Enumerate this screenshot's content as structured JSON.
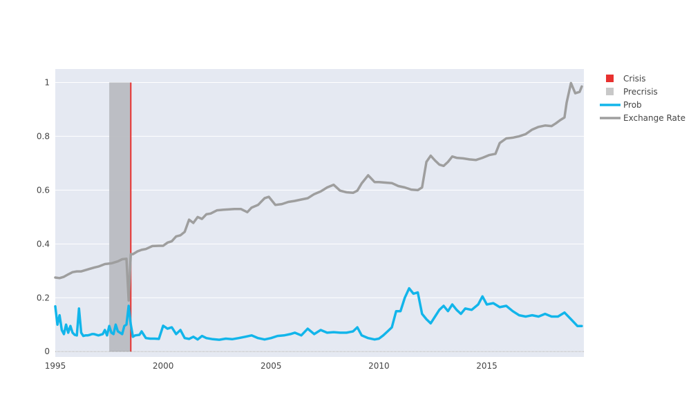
{
  "chart_data": {
    "type": "line",
    "title": "",
    "xlabel": "",
    "ylabel": "",
    "xlim": [
      1995.0,
      2019.5
    ],
    "ylim": [
      -0.02,
      1.05
    ],
    "x_ticks": [
      1995,
      2000,
      2005,
      2010,
      2015
    ],
    "y_ticks": [
      0,
      0.2,
      0.4,
      0.6,
      0.8,
      1
    ],
    "x_tick_labels": [
      "1995",
      "2000",
      "2005",
      "2010",
      "2015"
    ],
    "y_tick_labels": [
      "0",
      "0.2",
      "0.4",
      "0.6",
      "0.8",
      "1"
    ],
    "grid": true,
    "legend_position": "top-right",
    "colors": {
      "crisis": "#e8312f",
      "precrisis": "#b9bcc1",
      "prob": "#12b5ea",
      "exchange_rate": "#9e9e9e",
      "plot_bg": "#e5e9f2",
      "grid": "#ffffff",
      "tick_text": "#444444"
    },
    "legend": [
      {
        "name": "Crisis",
        "kind": "square",
        "color": "#e8312f"
      },
      {
        "name": "Precrisis",
        "kind": "square",
        "color": "#c8c8c8"
      },
      {
        "name": "Prob",
        "kind": "line",
        "color": "#12b5ea"
      },
      {
        "name": "Exchange Rate",
        "kind": "line",
        "color": "#9e9e9e"
      }
    ],
    "shapes": {
      "precrisis_band": {
        "x0": 1997.5,
        "x1": 1998.5,
        "y0": 0,
        "y1": 1
      },
      "crisis_line": {
        "x": 1998.5,
        "y0": 0,
        "y1": 1
      }
    },
    "series": [
      {
        "name": "Exchange Rate",
        "x": [
          1995.0,
          1995.2,
          1995.4,
          1995.6,
          1995.8,
          1996.0,
          1996.2,
          1996.5,
          1996.8,
          1997.0,
          1997.3,
          1997.6,
          1997.9,
          1998.1,
          1998.3,
          1998.4,
          1998.5,
          1998.6,
          1998.8,
          1999.0,
          1999.2,
          1999.5,
          1999.8,
          2000.0,
          2000.2,
          2000.4,
          2000.6,
          2000.8,
          2001.0,
          2001.2,
          2001.4,
          2001.6,
          2001.8,
          2002.0,
          2002.2,
          2002.5,
          2002.8,
          2003.0,
          2003.3,
          2003.6,
          2003.9,
          2004.1,
          2004.4,
          2004.7,
          2004.9,
          2005.2,
          2005.5,
          2005.8,
          2006.1,
          2006.4,
          2006.7,
          2007.0,
          2007.3,
          2007.6,
          2007.9,
          2008.2,
          2008.5,
          2008.8,
          2009.0,
          2009.2,
          2009.5,
          2009.8,
          2010.0,
          2010.3,
          2010.6,
          2010.9,
          2011.2,
          2011.5,
          2011.8,
          2012.0,
          2012.2,
          2012.4,
          2012.6,
          2012.8,
          2013.0,
          2013.2,
          2013.4,
          2013.6,
          2013.9,
          2014.2,
          2014.5,
          2014.8,
          2015.1,
          2015.4,
          2015.6,
          2015.9,
          2016.2,
          2016.5,
          2016.8,
          2017.1,
          2017.4,
          2017.7,
          2018.0,
          2018.2,
          2018.4,
          2018.6,
          2018.7,
          2018.9,
          2019.1,
          2019.3,
          2019.4
        ],
        "values": [
          0.275,
          0.273,
          0.278,
          0.287,
          0.295,
          0.298,
          0.298,
          0.305,
          0.312,
          0.316,
          0.325,
          0.328,
          0.335,
          0.343,
          0.345,
          0.19,
          0.362,
          0.362,
          0.372,
          0.378,
          0.381,
          0.392,
          0.393,
          0.393,
          0.405,
          0.41,
          0.428,
          0.432,
          0.445,
          0.49,
          0.478,
          0.5,
          0.493,
          0.51,
          0.513,
          0.525,
          0.527,
          0.528,
          0.53,
          0.53,
          0.518,
          0.535,
          0.545,
          0.57,
          0.575,
          0.545,
          0.548,
          0.556,
          0.56,
          0.565,
          0.57,
          0.585,
          0.595,
          0.61,
          0.62,
          0.598,
          0.592,
          0.59,
          0.598,
          0.625,
          0.655,
          0.63,
          0.63,
          0.628,
          0.626,
          0.615,
          0.61,
          0.602,
          0.6,
          0.61,
          0.705,
          0.728,
          0.71,
          0.695,
          0.69,
          0.705,
          0.725,
          0.72,
          0.718,
          0.714,
          0.712,
          0.72,
          0.73,
          0.735,
          0.775,
          0.792,
          0.795,
          0.8,
          0.808,
          0.825,
          0.835,
          0.84,
          0.838,
          0.848,
          0.86,
          0.87,
          0.925,
          0.998,
          0.96,
          0.965,
          0.985
        ]
      },
      {
        "name": "Prob",
        "x": [
          1995.0,
          1995.1,
          1995.2,
          1995.3,
          1995.4,
          1995.5,
          1995.6,
          1995.7,
          1995.8,
          1995.9,
          1996.0,
          1996.1,
          1996.2,
          1996.3,
          1996.4,
          1996.5,
          1996.6,
          1996.7,
          1996.8,
          1997.0,
          1997.2,
          1997.3,
          1997.4,
          1997.5,
          1997.6,
          1997.7,
          1997.8,
          1997.9,
          1998.0,
          1998.1,
          1998.2,
          1998.3,
          1998.4,
          1998.5,
          1998.6,
          1998.7,
          1998.9,
          1999.0,
          1999.2,
          1999.4,
          1999.6,
          1999.8,
          2000.0,
          2000.2,
          2000.4,
          2000.6,
          2000.8,
          2001.0,
          2001.2,
          2001.4,
          2001.6,
          2001.8,
          2002.0,
          2002.3,
          2002.6,
          2002.9,
          2003.2,
          2003.5,
          2003.8,
          2004.1,
          2004.4,
          2004.7,
          2005.0,
          2005.3,
          2005.6,
          2005.9,
          2006.1,
          2006.4,
          2006.7,
          2007.0,
          2007.3,
          2007.6,
          2007.9,
          2008.2,
          2008.5,
          2008.8,
          2009.0,
          2009.2,
          2009.5,
          2009.8,
          2010.0,
          2010.2,
          2010.4,
          2010.6,
          2010.8,
          2011.0,
          2011.2,
          2011.4,
          2011.6,
          2011.8,
          2012.0,
          2012.2,
          2012.4,
          2012.6,
          2012.8,
          2013.0,
          2013.2,
          2013.4,
          2013.6,
          2013.8,
          2014.0,
          2014.3,
          2014.6,
          2014.8,
          2015.0,
          2015.3,
          2015.6,
          2015.9,
          2016.2,
          2016.5,
          2016.8,
          2017.1,
          2017.4,
          2017.7,
          2018.0,
          2018.3,
          2018.6,
          2018.9,
          2019.2,
          2019.4
        ],
        "values": [
          0.168,
          0.1,
          0.135,
          0.08,
          0.065,
          0.1,
          0.07,
          0.095,
          0.07,
          0.062,
          0.06,
          0.16,
          0.07,
          0.058,
          0.06,
          0.06,
          0.062,
          0.065,
          0.065,
          0.06,
          0.065,
          0.08,
          0.06,
          0.095,
          0.07,
          0.065,
          0.1,
          0.075,
          0.07,
          0.065,
          0.095,
          0.1,
          0.17,
          0.1,
          0.055,
          0.06,
          0.062,
          0.075,
          0.05,
          0.048,
          0.048,
          0.047,
          0.096,
          0.085,
          0.09,
          0.065,
          0.08,
          0.05,
          0.047,
          0.055,
          0.045,
          0.058,
          0.05,
          0.046,
          0.044,
          0.048,
          0.046,
          0.05,
          0.055,
          0.06,
          0.05,
          0.045,
          0.05,
          0.058,
          0.06,
          0.065,
          0.07,
          0.06,
          0.085,
          0.065,
          0.08,
          0.07,
          0.072,
          0.07,
          0.07,
          0.075,
          0.09,
          0.06,
          0.05,
          0.045,
          0.048,
          0.06,
          0.075,
          0.09,
          0.15,
          0.15,
          0.2,
          0.235,
          0.215,
          0.22,
          0.14,
          0.12,
          0.105,
          0.13,
          0.155,
          0.17,
          0.15,
          0.175,
          0.155,
          0.14,
          0.16,
          0.155,
          0.175,
          0.205,
          0.175,
          0.18,
          0.165,
          0.17,
          0.15,
          0.135,
          0.13,
          0.135,
          0.13,
          0.14,
          0.13,
          0.13,
          0.145,
          0.12,
          0.095,
          0.095
        ]
      }
    ]
  }
}
